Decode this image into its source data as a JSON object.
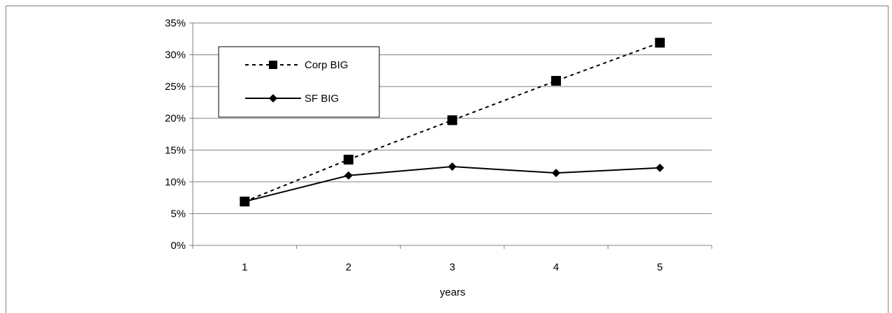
{
  "chart_data": {
    "type": "line",
    "title": "",
    "xlabel": "years",
    "ylabel": "",
    "categories": [
      "1",
      "2",
      "3",
      "4",
      "5"
    ],
    "ylim": [
      0,
      0.35
    ],
    "yticks": [
      "0%",
      "5%",
      "10%",
      "15%",
      "20%",
      "25%",
      "30%",
      "35%"
    ],
    "grid": true,
    "legend_position": "top-left",
    "series": [
      {
        "name": "Corp BIG",
        "values": [
          0.069,
          0.135,
          0.197,
          0.259,
          0.319
        ],
        "line_style": "dashed",
        "marker": "square"
      },
      {
        "name": "SF BIG",
        "values": [
          0.069,
          0.11,
          0.124,
          0.114,
          0.122
        ],
        "line_style": "solid",
        "marker": "diamond"
      }
    ]
  }
}
